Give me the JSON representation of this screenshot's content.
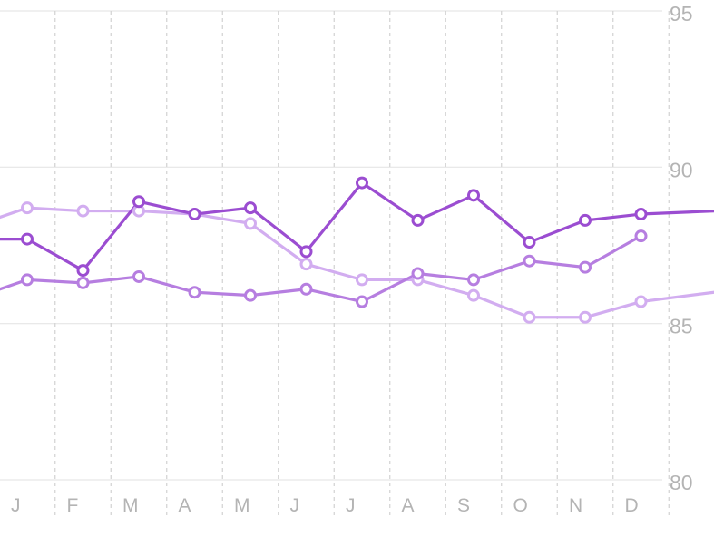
{
  "chart_data": {
    "type": "line",
    "categories": [
      "J",
      "F",
      "M",
      "A",
      "M",
      "J",
      "J",
      "A",
      "S",
      "O",
      "N",
      "D"
    ],
    "ylim": [
      80,
      95
    ],
    "yticks": [
      "95",
      "90",
      "85",
      "80"
    ],
    "grid": true,
    "series": [
      {
        "color": "#9b4dd1",
        "values": [
          87.7,
          86.7,
          88.9,
          88.5,
          88.7,
          87.3,
          89.5,
          88.3,
          89.1,
          87.6,
          88.3,
          88.5
        ],
        "left_edge": 87.7,
        "right_edge": 88.6
      },
      {
        "color": "#b67ee0",
        "values": [
          86.4,
          86.3,
          86.5,
          86.0,
          85.9,
          86.1,
          85.7,
          86.6,
          86.4,
          87.0,
          86.8,
          87.8
        ],
        "left_edge": 86.1,
        "right_edge": null
      },
      {
        "color": "#d2adf0",
        "values": [
          88.7,
          88.6,
          88.6,
          88.5,
          88.2,
          86.9,
          86.4,
          86.4,
          85.9,
          85.2,
          85.2,
          85.7
        ],
        "left_edge": 88.4,
        "right_edge": 86.0
      }
    ]
  }
}
